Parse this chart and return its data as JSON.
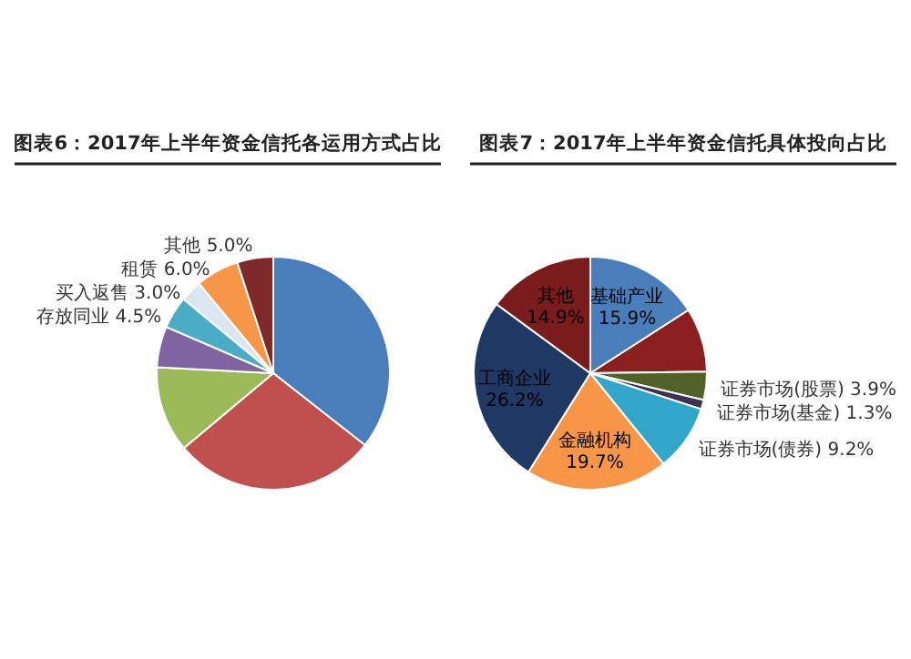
{
  "chart_data": [
    {
      "type": "pie",
      "title": "图表6：2017年上半年资金信托各运用方式占比",
      "categories": [
        null,
        null,
        null,
        null,
        "存放同业",
        "买入返售",
        "租赁",
        "其他"
      ],
      "values": [
        35.6,
        28.3,
        11.9,
        5.7,
        4.5,
        3.0,
        6.0,
        5.0
      ],
      "colors": [
        "#4a7ebb",
        "#c0504d",
        "#9bbb59",
        "#8064a2",
        "#4bacc6",
        "#dce6f2",
        "#f79646",
        "#7f2a2a"
      ],
      "value_labels": [
        null,
        null,
        null,
        null,
        "4.5%",
        "3.0%",
        "6.0%",
        "5.0%"
      ]
    },
    {
      "type": "pie",
      "title": "图表7：2017年上半年资金信托具体投向占比",
      "categories": [
        "基础产业",
        null,
        "证券市场(股票)",
        "证券市场(基金)",
        "证券市场(债券)",
        "金融机构",
        "工商企业",
        "其他"
      ],
      "values": [
        15.9,
        8.9,
        3.9,
        1.3,
        9.2,
        19.7,
        26.2,
        14.9
      ],
      "colors": [
        "#4a7ebb",
        "#8b1e1e",
        "#4f6228",
        "#403152",
        "#31a6c9",
        "#f79646",
        "#1f3864",
        "#7b1c1c"
      ],
      "value_labels": [
        "15.9%",
        null,
        "3.9%",
        "1.3%",
        "9.2%",
        "19.7%",
        "26.2%",
        "14.9%"
      ]
    }
  ]
}
